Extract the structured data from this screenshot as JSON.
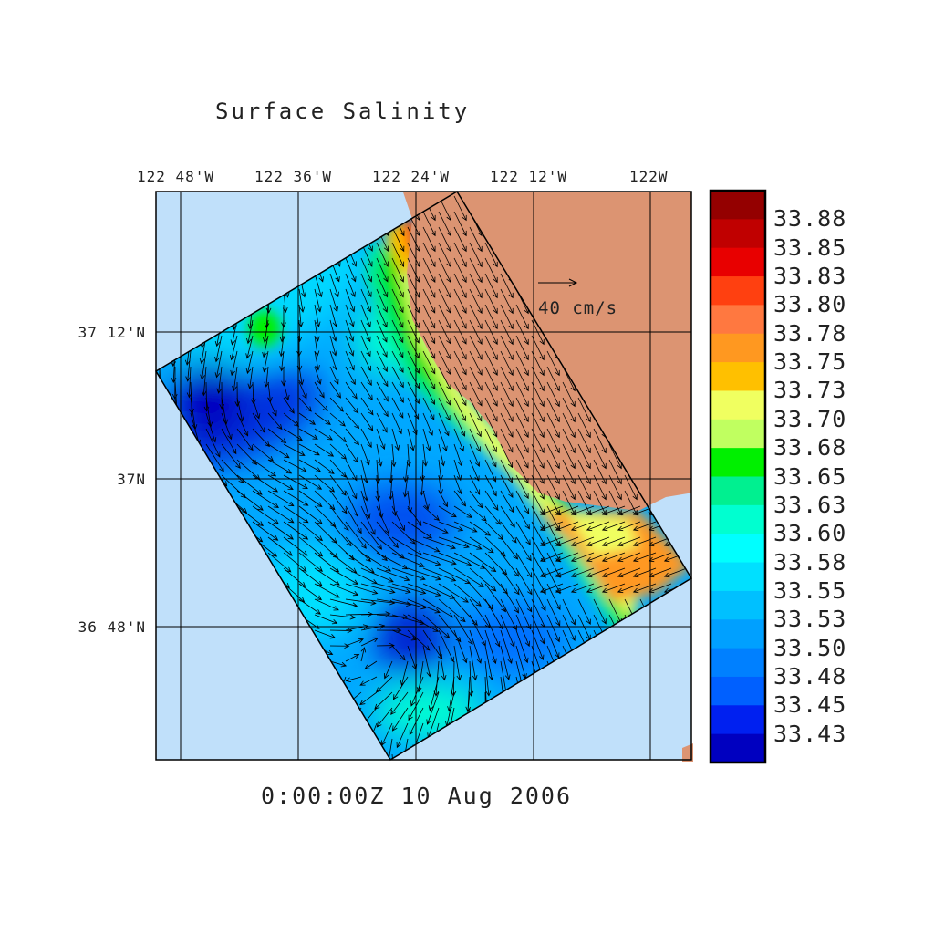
{
  "chart_data": {
    "type": "heatmap",
    "title": "Surface Salinity",
    "time_label": "0:00:00Z  10 Aug 2006",
    "x_ticks": [
      "122 48'W",
      "122 36'W",
      "122 24'W",
      "122 12'W",
      "122W"
    ],
    "y_ticks": [
      "37 12'N",
      "37N",
      "36 48'N"
    ],
    "vector_reference": "40 cm/s",
    "colorbar": {
      "labels": [
        "33.88",
        "33.85",
        "33.83",
        "33.80",
        "33.78",
        "33.75",
        "33.73",
        "33.70",
        "33.68",
        "33.65",
        "33.63",
        "33.60",
        "33.58",
        "33.55",
        "33.53",
        "33.50",
        "33.48",
        "33.45",
        "33.43"
      ],
      "colors": [
        "#940000",
        "#c00000",
        "#e80000",
        "#ff4010",
        "#ff7840",
        "#ff9820",
        "#ffc000",
        "#f0ff60",
        "#c0ff60",
        "#00f000",
        "#00f090",
        "#00ffd0",
        "#00ffff",
        "#00e0ff",
        "#00c0ff",
        "#00a0ff",
        "#0080ff",
        "#0060ff",
        "#0020f0",
        "#0000c0"
      ]
    },
    "ocean_color": "#c0e0fa",
    "land_color": "#dc9472"
  }
}
